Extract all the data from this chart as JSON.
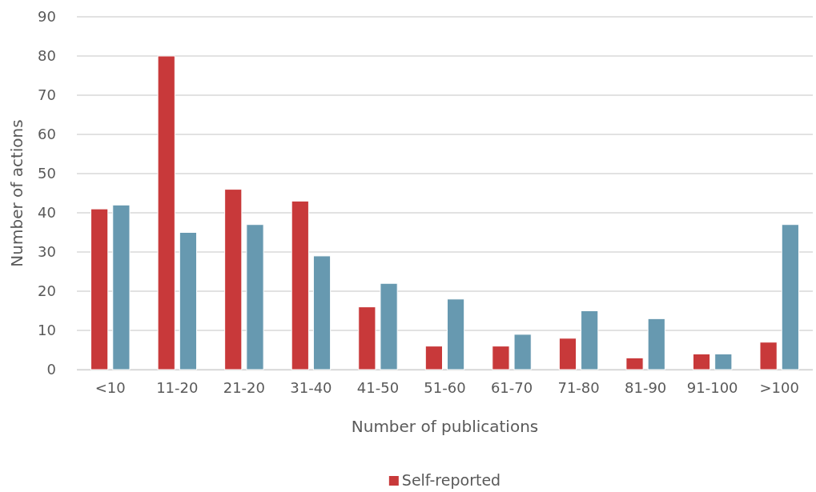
{
  "chart_data": {
    "type": "bar",
    "xlabel": "Number of publications",
    "ylabel": "Number of actions",
    "categories": [
      "<10",
      "11-20",
      "21-20",
      "31-40",
      "41-50",
      "51-60",
      "61-70",
      "71-80",
      "81-90",
      "91-100",
      ">100"
    ],
    "series": [
      {
        "name": "Self-reported",
        "color": "#c8393a",
        "values": [
          41,
          80,
          46,
          43,
          16,
          6,
          6,
          8,
          3,
          4,
          7
        ]
      },
      {
        "color": "#6799b0",
        "values": [
          42,
          35,
          37,
          29,
          22,
          18,
          9,
          15,
          13,
          4,
          37
        ]
      }
    ],
    "ylim": [
      0,
      90
    ],
    "yticks": [
      0,
      10,
      20,
      30,
      40,
      50,
      60,
      70,
      80,
      90
    ],
    "grid": "y",
    "legend": "bottom"
  }
}
